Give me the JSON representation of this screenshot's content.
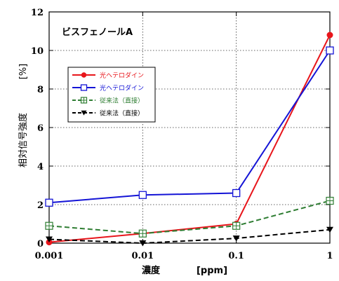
{
  "chart_data": {
    "type": "line",
    "annotation": "ビスフェノールA",
    "xlabel": "濃度",
    "xunit": "[ppm]",
    "ylabel": "相対信号強度",
    "yunit": "[%]",
    "x_scale": "log",
    "x": [
      0.001,
      0.01,
      0.1,
      1
    ],
    "x_tick_labels": [
      "0.001",
      "0.01",
      "0.1",
      "1"
    ],
    "xlim": [
      0.001,
      1
    ],
    "ylim": [
      0,
      12
    ],
    "y_ticks": [
      0,
      2,
      4,
      6,
      8,
      10,
      12
    ],
    "grid": "dotted",
    "legend_position": "upper-left",
    "series": [
      {
        "name": "光ヘテロダイン",
        "color": "#e8151b",
        "marker": "filled-circle",
        "line": "solid",
        "values": [
          0.05,
          0.5,
          1.0,
          10.8
        ]
      },
      {
        "name": "光ヘテロダイン",
        "color": "#1414d6",
        "marker": "open-square",
        "line": "solid",
        "values": [
          2.1,
          2.5,
          2.6,
          10.0
        ]
      },
      {
        "name": "従来法（直接）",
        "color": "#2e7d32",
        "marker": "crossed-square",
        "line": "dashed",
        "values": [
          0.9,
          0.5,
          0.9,
          2.2
        ]
      },
      {
        "name": "従来法（直接）",
        "color": "#000000",
        "marker": "filled-triangle-down",
        "line": "dashed",
        "values": [
          0.2,
          0.0,
          0.25,
          0.7
        ]
      }
    ]
  }
}
